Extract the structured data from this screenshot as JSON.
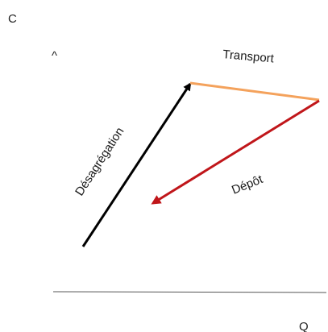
{
  "axes": {
    "y_label": "C",
    "y_caret": "^",
    "x_label": "Q"
  },
  "arrows": {
    "desagregation": {
      "label": "Désagrégation",
      "color": "#000000"
    },
    "transport": {
      "label": "Transport",
      "color": "#f4a25c"
    },
    "depot": {
      "label": "Dépôt",
      "color": "#c0161a"
    }
  }
}
